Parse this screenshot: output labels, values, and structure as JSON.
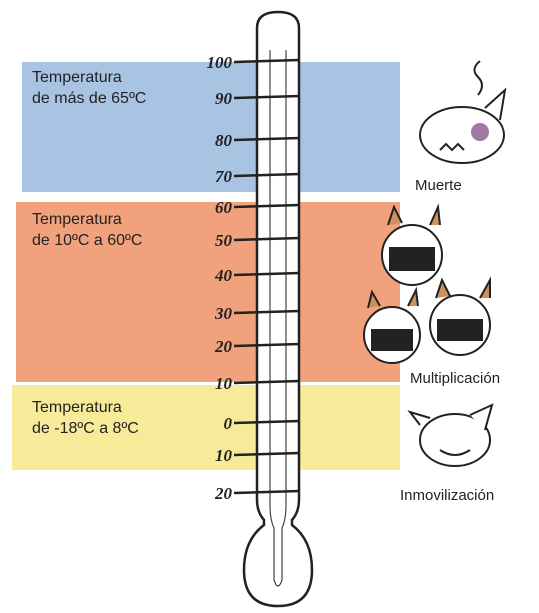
{
  "zones": [
    {
      "lines": [
        "Temperatura",
        "de más de 65ºC"
      ],
      "creature": "Muerte"
    },
    {
      "lines": [
        "Temperatura",
        "de 10ºC a 60ºC"
      ],
      "creature": "Multiplicación"
    },
    {
      "lines": [
        "Temperatura",
        "de -18ºC a 8ºC"
      ],
      "creature": "Inmovilización"
    }
  ],
  "scale": [
    "100",
    "90",
    "80",
    "70",
    "60",
    "50",
    "40",
    "30",
    "20",
    "10",
    "0",
    "10",
    "20"
  ]
}
